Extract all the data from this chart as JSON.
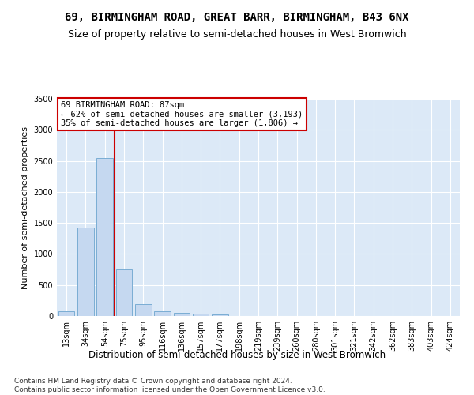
{
  "title": "69, BIRMINGHAM ROAD, GREAT BARR, BIRMINGHAM, B43 6NX",
  "subtitle": "Size of property relative to semi-detached houses in West Bromwich",
  "xlabel": "Distribution of semi-detached houses by size in West Bromwich",
  "ylabel": "Number of semi-detached properties",
  "categories": [
    "13sqm",
    "34sqm",
    "54sqm",
    "75sqm",
    "95sqm",
    "116sqm",
    "136sqm",
    "157sqm",
    "177sqm",
    "198sqm",
    "219sqm",
    "239sqm",
    "260sqm",
    "280sqm",
    "301sqm",
    "321sqm",
    "342sqm",
    "362sqm",
    "383sqm",
    "403sqm",
    "424sqm"
  ],
  "values": [
    80,
    1420,
    2540,
    750,
    190,
    80,
    50,
    35,
    30,
    0,
    0,
    0,
    0,
    0,
    0,
    0,
    0,
    0,
    0,
    0,
    0
  ],
  "bar_color": "#c5d8f0",
  "bar_edge_color": "#7aadd4",
  "vline_color": "#cc0000",
  "annotation_text": "69 BIRMINGHAM ROAD: 87sqm\n← 62% of semi-detached houses are smaller (3,193)\n35% of semi-detached houses are larger (1,806) →",
  "annotation_box_color": "#ffffff",
  "annotation_box_edge_color": "#cc0000",
  "ylim": [
    0,
    3500
  ],
  "yticks": [
    0,
    500,
    1000,
    1500,
    2000,
    2500,
    3000,
    3500
  ],
  "background_color": "#dce9f7",
  "grid_color": "#ffffff",
  "footer": "Contains HM Land Registry data © Crown copyright and database right 2024.\nContains public sector information licensed under the Open Government Licence v3.0.",
  "title_fontsize": 10,
  "subtitle_fontsize": 9,
  "xlabel_fontsize": 8.5,
  "ylabel_fontsize": 8,
  "tick_fontsize": 7,
  "footer_fontsize": 6.5
}
